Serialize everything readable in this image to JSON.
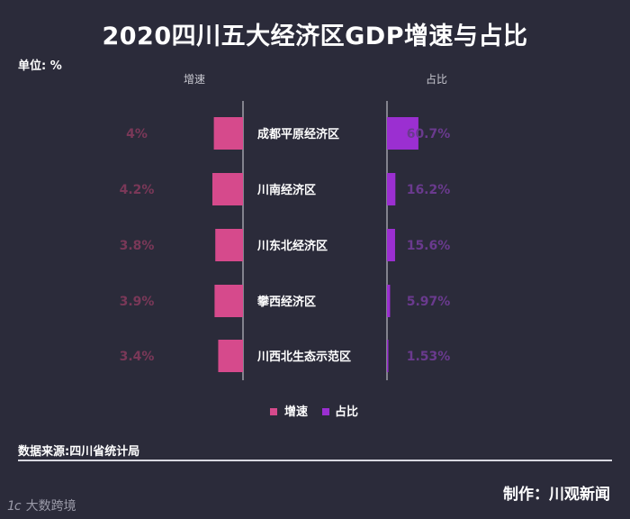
{
  "chart_data": {
    "type": "bar",
    "title": "2020四川五大经济区GDP增速与占比",
    "unit_label": "单位: %",
    "categories": [
      "成都平原经济区",
      "川南经济区",
      "川东北经济区",
      "攀西经济区",
      "川西北生态示范区"
    ],
    "series": [
      {
        "name": "增速",
        "values": [
          4,
          4.2,
          3.8,
          3.9,
          3.4
        ],
        "labels": [
          "4%",
          "4.2%",
          "3.8%",
          "3.9%",
          "3.4%"
        ],
        "color": "#d64a8c",
        "label_color": "#7a3858"
      },
      {
        "name": "占比",
        "values": [
          60.7,
          16.2,
          15.6,
          5.97,
          1.53
        ],
        "labels": [
          "60.7%",
          "16.2%",
          "15.6%",
          "5.97%",
          "1.53%"
        ],
        "color": "#9b2fd1",
        "label_color": "#6a3a8e"
      }
    ],
    "legend_position": "bottom-center"
  },
  "footer": {
    "source": "数据来源:四川省统计局",
    "maker": "制作：川观新闻",
    "logo_mark": "1ᴄ",
    "logo_text": "大数跨境"
  }
}
